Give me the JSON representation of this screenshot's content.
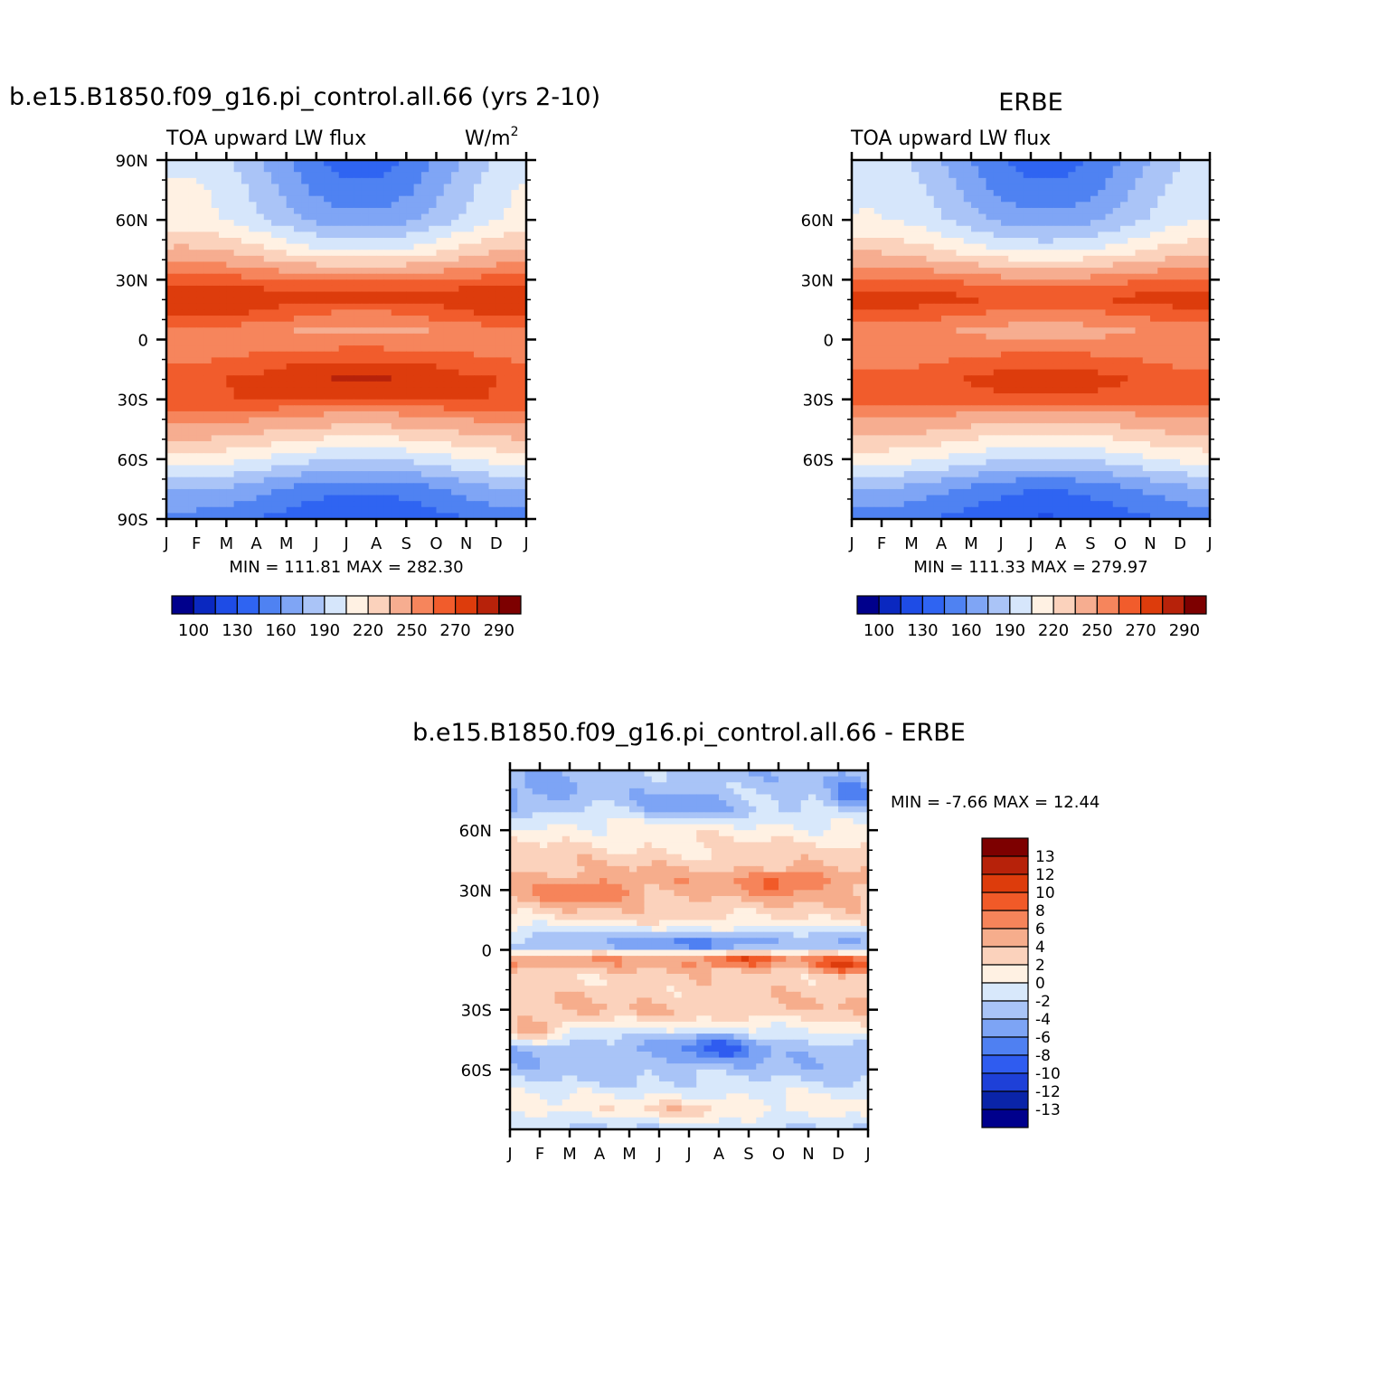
{
  "colors": {
    "main_scale": [
      "#00008c",
      "#0a28c0",
      "#1e4ce6",
      "#2f64f2",
      "#4f82f2",
      "#7fa5f5",
      "#aac4f7",
      "#d6e6fb",
      "#fff1e3",
      "#fbd2bc",
      "#f6ad90",
      "#f6855c",
      "#f15c2c",
      "#dd3c0c",
      "#b7220a",
      "#7d0000"
    ],
    "diff_scale": [
      "#00008c",
      "#0a24a8",
      "#1e40d8",
      "#2f5cf0",
      "#4f80f2",
      "#7da4f5",
      "#a9c4f7",
      "#d8e8fb",
      "#fff1e3",
      "#fbd2bc",
      "#f6ad8c",
      "#f6845a",
      "#f15a28",
      "#dd3c0c",
      "#b7220a",
      "#7d0000"
    ]
  },
  "chart_data": [
    {
      "type": "heatmap",
      "title": "b.e15.B1850.f09_g16.pi_control.all.66 (yrs 2-10)",
      "left_label": "TOA upward LW flux",
      "units_text": "W/m",
      "units_sup": "2",
      "x_ticks": [
        "J",
        "F",
        "M",
        "A",
        "M",
        "J",
        "J",
        "A",
        "S",
        "O",
        "N",
        "D",
        "J"
      ],
      "y_ticks": [
        "90N",
        "60N",
        "30N",
        "0",
        "30S",
        "60S",
        "90S"
      ],
      "y_tick_values": [
        90,
        60,
        30,
        0,
        -30,
        -60,
        -90
      ],
      "ylim": [
        -90,
        90
      ],
      "minmax_text": "MIN = 111.81 MAX = 282.30",
      "colorbar_labels": [
        "100",
        "130",
        "160",
        "190",
        "220",
        "250",
        "270",
        "290"
      ],
      "lat_profile": [
        [
          90,
          170
        ],
        [
          75,
          178
        ],
        [
          60,
          188
        ],
        [
          45,
          220
        ],
        [
          35,
          250
        ],
        [
          25,
          271
        ],
        [
          20,
          276
        ],
        [
          10,
          262
        ],
        [
          5,
          252
        ],
        [
          0,
          254
        ],
        [
          -10,
          264
        ],
        [
          -20,
          275
        ],
        [
          -30,
          270
        ],
        [
          -45,
          238
        ],
        [
          -60,
          202
        ],
        [
          -75,
          162
        ],
        [
          -90,
          142
        ]
      ],
      "seasonal_amplitude": [
        [
          90,
          -32
        ],
        [
          75,
          -30
        ],
        [
          60,
          -22
        ],
        [
          45,
          -18
        ],
        [
          35,
          -8
        ],
        [
          25,
          0
        ],
        [
          15,
          -8
        ],
        [
          5,
          -6
        ],
        [
          -5,
          2
        ],
        [
          -15,
          8
        ],
        [
          -25,
          4
        ],
        [
          -35,
          -4
        ],
        [
          -45,
          -8
        ],
        [
          -60,
          -12
        ],
        [
          -75,
          -14
        ],
        [
          -90,
          -12
        ]
      ],
      "min": 111.81,
      "max": 282.3
    },
    {
      "type": "heatmap",
      "title": "ERBE",
      "left_label": "TOA upward LW flux",
      "x_ticks": [
        "J",
        "F",
        "M",
        "A",
        "M",
        "J",
        "J",
        "A",
        "S",
        "O",
        "N",
        "D",
        "J"
      ],
      "y_ticks": [
        "60N",
        "30N",
        "0",
        "30S",
        "60S"
      ],
      "y_tick_values": [
        60,
        30,
        0,
        -30,
        -60
      ],
      "ylim": [
        -90,
        90
      ],
      "minmax_text": "MIN = 111.33 MAX = 279.97",
      "colorbar_labels": [
        "100",
        "130",
        "160",
        "190",
        "220",
        "250",
        "270",
        "290"
      ],
      "lat_profile": [
        [
          90,
          168
        ],
        [
          75,
          176
        ],
        [
          60,
          186
        ],
        [
          45,
          216
        ],
        [
          35,
          246
        ],
        [
          25,
          268
        ],
        [
          20,
          272
        ],
        [
          10,
          258
        ],
        [
          5,
          250
        ],
        [
          0,
          252
        ],
        [
          -10,
          260
        ],
        [
          -20,
          270
        ],
        [
          -30,
          266
        ],
        [
          -45,
          234
        ],
        [
          -60,
          200
        ],
        [
          -75,
          160
        ],
        [
          -90,
          140
        ]
      ],
      "seasonal_amplitude": [
        [
          90,
          -30
        ],
        [
          75,
          -28
        ],
        [
          60,
          -20
        ],
        [
          45,
          -16
        ],
        [
          35,
          -8
        ],
        [
          25,
          0
        ],
        [
          15,
          -6
        ],
        [
          5,
          -5
        ],
        [
          -5,
          2
        ],
        [
          -15,
          6
        ],
        [
          -25,
          4
        ],
        [
          -35,
          -4
        ],
        [
          -45,
          -8
        ],
        [
          -60,
          -12
        ],
        [
          -75,
          -14
        ],
        [
          -90,
          -12
        ]
      ],
      "min": 111.33,
      "max": 279.97
    },
    {
      "type": "heatmap",
      "title": "b.e15.B1850.f09_g16.pi_control.all.66 - ERBE",
      "x_ticks": [
        "J",
        "F",
        "M",
        "A",
        "M",
        "J",
        "J",
        "A",
        "S",
        "O",
        "N",
        "D",
        "J"
      ],
      "y_ticks": [
        "60N",
        "30N",
        "0",
        "30S",
        "60S"
      ],
      "y_tick_values": [
        60,
        30,
        0,
        -30,
        -60
      ],
      "ylim": [
        -90,
        90
      ],
      "minmax_text": "MIN = -7.66 MAX = 12.44",
      "colorbar_labels": [
        "13",
        "12",
        "10",
        "8",
        "6",
        "4",
        "2",
        "0",
        "-2",
        "-4",
        "-6",
        "-8",
        "-10",
        "-12",
        "-13"
      ],
      "bands": [
        [
          85,
          -3
        ],
        [
          70,
          -2
        ],
        [
          60,
          1
        ],
        [
          45,
          3
        ],
        [
          35,
          5
        ],
        [
          25,
          4
        ],
        [
          15,
          2
        ],
        [
          8,
          -2
        ],
        [
          2,
          -4
        ],
        [
          -5,
          6
        ],
        [
          -12,
          3
        ],
        [
          -20,
          3
        ],
        [
          -30,
          4
        ],
        [
          -40,
          0
        ],
        [
          -50,
          -4
        ],
        [
          -60,
          -3
        ],
        [
          -70,
          -1
        ],
        [
          -80,
          1
        ],
        [
          -90,
          -2
        ]
      ],
      "features": [
        {
          "month": 1.0,
          "lat": 78,
          "amp": -2.5,
          "slat": 9,
          "smon": 1.1
        },
        {
          "month": 11.4,
          "lat": 78,
          "amp": -3.5,
          "slat": 9,
          "smon": 0.7
        },
        {
          "month": 6.0,
          "lat": 72,
          "amp": -3,
          "slat": 7,
          "smon": 1.6
        },
        {
          "month": 2.6,
          "lat": 28,
          "amp": 4,
          "slat": 6,
          "smon": 1.4
        },
        {
          "month": 9.3,
          "lat": 34,
          "amp": 4,
          "slat": 6,
          "smon": 1.3
        },
        {
          "month": 6.3,
          "lat": 4,
          "amp": -3,
          "slat": 4,
          "smon": 2.5
        },
        {
          "month": 7.8,
          "lat": -5,
          "amp": 5,
          "slat": 4,
          "smon": 1.2
        },
        {
          "month": 11.2,
          "lat": -8,
          "amp": 6,
          "slat": 4,
          "smon": 1.0
        },
        {
          "month": 1.0,
          "lat": -40,
          "amp": 4,
          "slat": 7,
          "smon": 0.9
        },
        {
          "month": 7.0,
          "lat": -48,
          "amp": -5,
          "slat": 7,
          "smon": 1.4
        },
        {
          "month": 11.5,
          "lat": -41,
          "amp": 2,
          "slat": 6,
          "smon": 1.0
        },
        {
          "month": 6.0,
          "lat": -80,
          "amp": 2.5,
          "slat": 6,
          "smon": 1.6
        }
      ],
      "min": -7.66,
      "max": 12.44
    }
  ]
}
